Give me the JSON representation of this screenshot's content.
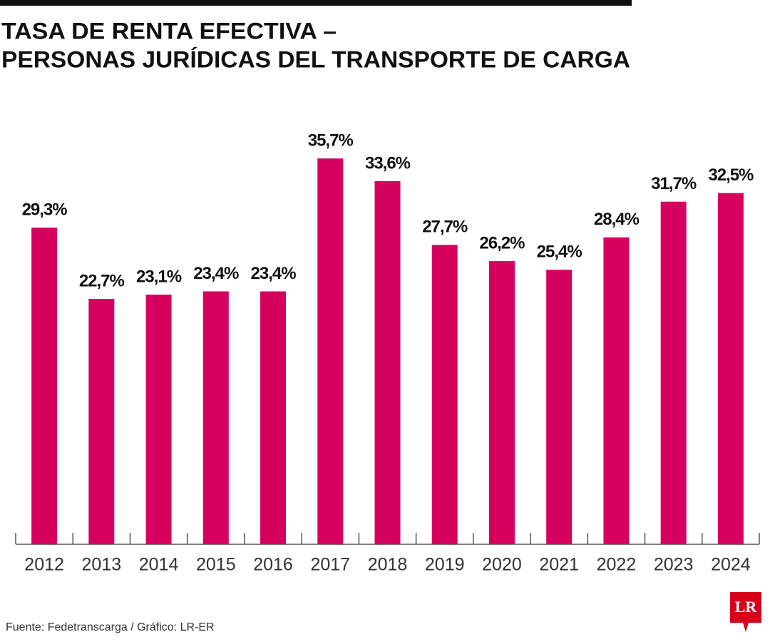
{
  "chart_data": {
    "type": "bar",
    "title_lines": [
      "TASA DE RENTA EFECTIVA –",
      "PERSONAS JURÍDICAS DEL TRANSPORTE DE CARGA"
    ],
    "categories": [
      "2012",
      "2013",
      "2014",
      "2015",
      "2016",
      "2017",
      "2018",
      "2019",
      "2020",
      "2021",
      "2022",
      "2023",
      "2024"
    ],
    "values": [
      29.3,
      22.7,
      23.1,
      23.4,
      23.4,
      35.7,
      33.6,
      27.7,
      26.2,
      25.4,
      28.4,
      31.7,
      32.5
    ],
    "value_labels": [
      "29,3%",
      "22,7%",
      "23,1%",
      "23,4%",
      "23,4%",
      "35,7%",
      "33,6%",
      "27,7%",
      "26,2%",
      "25,4%",
      "28,4%",
      "31,7%",
      "32,5%"
    ],
    "color": "#d6005f",
    "ylim": [
      0,
      40
    ],
    "source": "Fuente: Fedetranscarga / Gráfico: LR-ER",
    "logo": "LR"
  }
}
